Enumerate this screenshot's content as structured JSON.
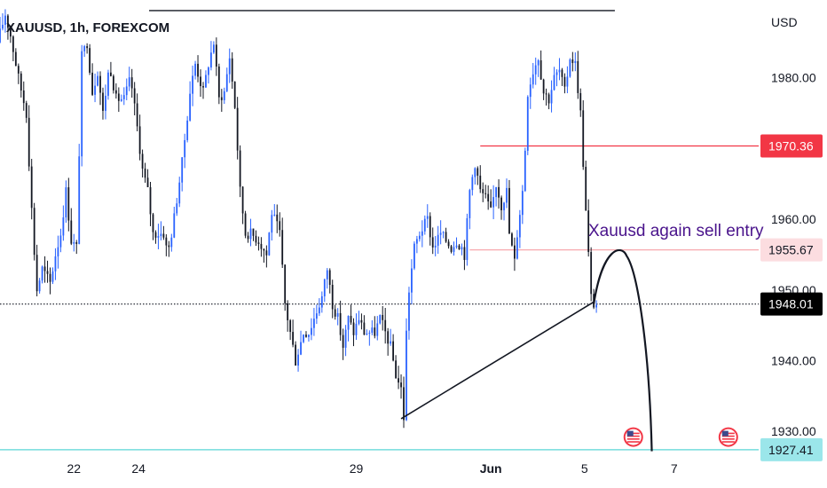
{
  "chart_data": {
    "type": "candlestick",
    "title": "XAUUSD, 1h, FOREXCOM",
    "currency": "USD",
    "ylim": [
      1922,
      1991
    ],
    "y_ticks": [
      "1980.00",
      "1970.00",
      "1960.00",
      "1950.00",
      "1940.00",
      "1930.00"
    ],
    "y_tick_values": [
      1980,
      1970,
      1960,
      1950,
      1940,
      1930
    ],
    "x_ticks": [
      "22",
      "24",
      "29",
      "Jun",
      "5",
      "7"
    ],
    "x_tick_hours": [
      56,
      105,
      270,
      372,
      443,
      511
    ],
    "total_hours": 575,
    "price_levels": [
      {
        "name": "resistance-line",
        "value": 1970.36,
        "label": "1970.36",
        "color": "#f23645",
        "from_hour": 364
      },
      {
        "name": "entry-line",
        "value": 1955.67,
        "label": "1955.67",
        "color": "#f7a9ae",
        "from_hour": 356
      },
      {
        "name": "current-price-line",
        "value": 1948.01,
        "label": "1948.01",
        "color": "#131722",
        "from_hour": 0
      },
      {
        "name": "target-line",
        "value": 1927.41,
        "label": "1927.41",
        "color": "#5ad6d6",
        "from_hour": 0
      }
    ],
    "top_line": {
      "value": 1989.5,
      "from_hour": 113,
      "to_hour": 466
    },
    "trend_line": {
      "start_hour": 304,
      "start_value": 1931.8,
      "end_hour": 450,
      "end_value": 1948.3
    },
    "projection": {
      "start_hour": 450,
      "start_value": 1948.0,
      "peak_hour": 475,
      "peak_value": 1954.8,
      "end_hour": 494,
      "end_value": 1927.2
    },
    "annotation": "Xauusd again sell entry",
    "event_icon_hours": [
      480,
      552
    ],
    "series_keypoints": [
      [
        0,
        1985
      ],
      [
        6,
        1989
      ],
      [
        10,
        1986
      ],
      [
        16,
        1980
      ],
      [
        22,
        1975
      ],
      [
        27,
        1958
      ],
      [
        30,
        1950
      ],
      [
        34,
        1953
      ],
      [
        40,
        1951
      ],
      [
        44,
        1955
      ],
      [
        48,
        1958
      ],
      [
        52,
        1964
      ],
      [
        56,
        1957
      ],
      [
        60,
        1956
      ],
      [
        64,
        1983
      ],
      [
        68,
        1985
      ],
      [
        72,
        1978
      ],
      [
        76,
        1981
      ],
      [
        80,
        1975
      ],
      [
        85,
        1982
      ],
      [
        90,
        1977
      ],
      [
        96,
        1977
      ],
      [
        101,
        1980
      ],
      [
        106,
        1973
      ],
      [
        110,
        1967
      ],
      [
        114,
        1964
      ],
      [
        118,
        1958
      ],
      [
        122,
        1958
      ],
      [
        126,
        1958
      ],
      [
        129,
        1955
      ],
      [
        133,
        1959
      ],
      [
        140,
        1968
      ],
      [
        146,
        1978
      ],
      [
        150,
        1982
      ],
      [
        156,
        1978
      ],
      [
        160,
        1982
      ],
      [
        164,
        1985
      ],
      [
        168,
        1977
      ],
      [
        172,
        1978
      ],
      [
        176,
        1983
      ],
      [
        180,
        1976
      ],
      [
        184,
        1964
      ],
      [
        188,
        1958
      ],
      [
        192,
        1958
      ],
      [
        198,
        1957
      ],
      [
        204,
        1955
      ],
      [
        208,
        1961
      ],
      [
        214,
        1958
      ],
      [
        218,
        1948
      ],
      [
        222,
        1944
      ],
      [
        226,
        1940
      ],
      [
        232,
        1944
      ],
      [
        236,
        1944
      ],
      [
        240,
        1946
      ],
      [
        246,
        1949
      ],
      [
        250,
        1953
      ],
      [
        254,
        1948
      ],
      [
        258,
        1946
      ],
      [
        262,
        1942
      ],
      [
        266,
        1946
      ],
      [
        270,
        1944
      ],
      [
        274,
        1946
      ],
      [
        278,
        1944
      ],
      [
        282,
        1944
      ],
      [
        286,
        1944
      ],
      [
        290,
        1946
      ],
      [
        294,
        1944
      ],
      [
        298,
        1942
      ],
      [
        302,
        1938
      ],
      [
        306,
        1936
      ],
      [
        308,
        1932
      ],
      [
        310,
        1944
      ],
      [
        312,
        1950
      ],
      [
        316,
        1956
      ],
      [
        320,
        1958
      ],
      [
        326,
        1960
      ],
      [
        330,
        1956
      ],
      [
        336,
        1958
      ],
      [
        340,
        1957
      ],
      [
        344,
        1956
      ],
      [
        348,
        1957
      ],
      [
        352,
        1956
      ],
      [
        354,
        1955
      ],
      [
        358,
        1964
      ],
      [
        362,
        1968
      ],
      [
        366,
        1964
      ],
      [
        370,
        1963
      ],
      [
        374,
        1961
      ],
      [
        378,
        1965
      ],
      [
        382,
        1962
      ],
      [
        386,
        1964
      ],
      [
        388,
        1958
      ],
      [
        392,
        1954
      ],
      [
        394,
        1958
      ],
      [
        398,
        1964
      ],
      [
        400,
        1970
      ],
      [
        402,
        1978
      ],
      [
        406,
        1981
      ],
      [
        410,
        1983
      ],
      [
        414,
        1978
      ],
      [
        418,
        1977
      ],
      [
        422,
        1980
      ],
      [
        426,
        1981
      ],
      [
        430,
        1978
      ],
      [
        434,
        1983
      ],
      [
        438,
        1982
      ],
      [
        442,
        1975
      ],
      [
        444,
        1968
      ],
      [
        446,
        1961
      ],
      [
        448,
        1955
      ],
      [
        450,
        1949
      ],
      [
        452,
        1948
      ]
    ]
  }
}
